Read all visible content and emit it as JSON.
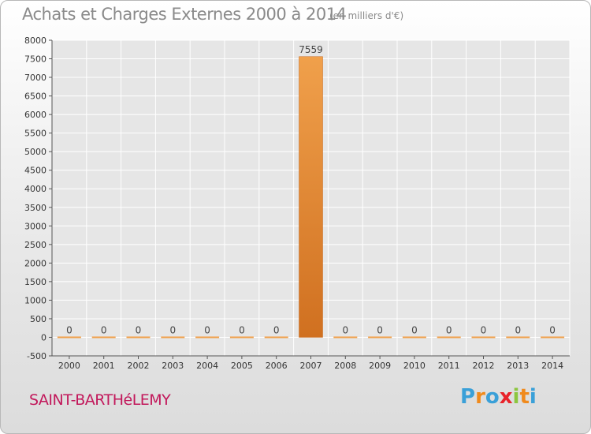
{
  "header": {
    "title": "Achats et Charges Externes 2000 à 2014",
    "subtitle": "(en milliers d'€)"
  },
  "footer": {
    "commune": "SAINT-BARTHéLEMY",
    "logo_letters": [
      "P",
      "r",
      "o",
      "x",
      "i",
      "t",
      "i"
    ],
    "logo_colors": [
      "#3aa0d8",
      "#f08a1c",
      "#3aa0d8",
      "#e8232a",
      "#8cc63f",
      "#f08a1c",
      "#3aa0d8"
    ]
  },
  "chart_data": {
    "type": "bar",
    "title": "Achats et Charges Externes 2000 à 2014",
    "subtitle": "(en milliers d'€)",
    "categories": [
      "2000",
      "2001",
      "2002",
      "2003",
      "2004",
      "2005",
      "2006",
      "2007",
      "2008",
      "2009",
      "2010",
      "2011",
      "2012",
      "2013",
      "2014"
    ],
    "values": [
      0,
      0,
      0,
      0,
      0,
      0,
      0,
      7559,
      0,
      0,
      0,
      0,
      0,
      0,
      0
    ],
    "ylim": [
      -500,
      8000
    ],
    "yticks": [
      -500,
      0,
      500,
      1000,
      1500,
      2000,
      2500,
      3000,
      3500,
      4000,
      4500,
      5000,
      5500,
      6000,
      6500,
      7000,
      7500,
      8000
    ],
    "xlabel": "",
    "ylabel": "",
    "grid": "horizontal",
    "bar_color": "#f0a04b",
    "bar_color_dark": "#d07020"
  }
}
